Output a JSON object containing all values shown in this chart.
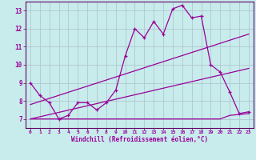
{
  "xlabel": "Windchill (Refroidissement éolien,°C)",
  "bg_color": "#c8ecec",
  "grid_color": "#b0c8d0",
  "line_color": "#990099",
  "spine_color": "#660066",
  "xlim": [
    -0.5,
    23.5
  ],
  "ylim": [
    6.5,
    13.5
  ],
  "xticks": [
    0,
    1,
    2,
    3,
    4,
    5,
    6,
    7,
    8,
    9,
    10,
    11,
    12,
    13,
    14,
    15,
    16,
    17,
    18,
    19,
    20,
    21,
    22,
    23
  ],
  "yticks": [
    7,
    8,
    9,
    10,
    11,
    12,
    13
  ],
  "line1_x": [
    0,
    1,
    2,
    3,
    4,
    5,
    6,
    7,
    8,
    9,
    10,
    11,
    12,
    13,
    14,
    15,
    16,
    17,
    18,
    19,
    20,
    21,
    22,
    23
  ],
  "line1_y": [
    9.0,
    8.3,
    7.9,
    7.0,
    7.2,
    7.9,
    7.9,
    7.5,
    7.9,
    8.6,
    10.5,
    12.0,
    11.5,
    12.4,
    11.7,
    13.1,
    13.3,
    12.6,
    12.7,
    10.0,
    9.6,
    8.5,
    7.3,
    7.4
  ],
  "line2_x": [
    0,
    23
  ],
  "line2_y": [
    7.8,
    11.7
  ],
  "line3_x": [
    0,
    23
  ],
  "line3_y": [
    7.0,
    9.8
  ],
  "line4_x": [
    0,
    9,
    10,
    14,
    15,
    20,
    21,
    23
  ],
  "line4_y": [
    7.0,
    7.0,
    7.0,
    7.0,
    7.0,
    7.0,
    7.2,
    7.3
  ]
}
